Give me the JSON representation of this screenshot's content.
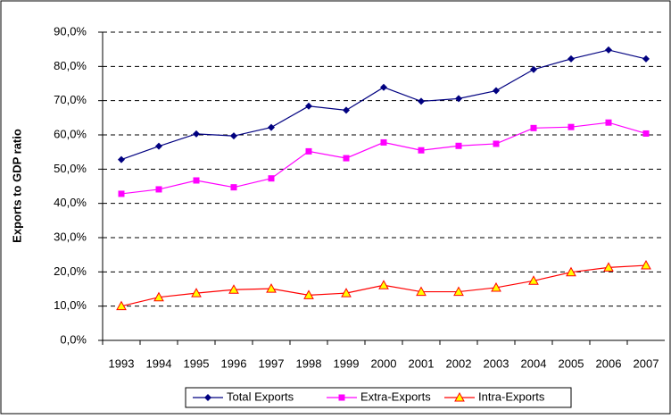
{
  "chart_data": {
    "type": "line",
    "y_label": "Exports to GDP ratio",
    "categories": [
      "1993",
      "1994",
      "1995",
      "1996",
      "1997",
      "1998",
      "1999",
      "2000",
      "2001",
      "2002",
      "2003",
      "2004",
      "2005",
      "2006",
      "2007"
    ],
    "series": [
      {
        "name": "Total Exports",
        "color": "#000080",
        "marker": "diamond",
        "values": [
          52.8,
          56.7,
          60.3,
          59.7,
          62.2,
          68.4,
          67.2,
          73.9,
          69.8,
          70.6,
          72.9,
          79.1,
          82.2,
          84.8,
          82.2
        ]
      },
      {
        "name": "Extra-Exports",
        "color": "#ff00ff",
        "marker": "square",
        "values": [
          42.8,
          44.1,
          46.7,
          44.7,
          47.3,
          55.2,
          53.2,
          57.8,
          55.5,
          56.8,
          57.4,
          62.0,
          62.3,
          63.6,
          60.4
        ]
      },
      {
        "name": "Intra-Exports",
        "color": "#ff0000",
        "marker": "triangle",
        "values": [
          10.0,
          12.6,
          13.8,
          14.8,
          15.1,
          13.2,
          13.8,
          16.1,
          14.2,
          14.2,
          15.4,
          17.4,
          19.9,
          21.3,
          21.9
        ]
      }
    ],
    "ylim": [
      0,
      90
    ],
    "yticks": [
      {
        "value": 0,
        "label": "0,0%"
      },
      {
        "value": 10,
        "label": "10,0%"
      },
      {
        "value": 20,
        "label": "20,0%"
      },
      {
        "value": 30,
        "label": "30,0%"
      },
      {
        "value": 40,
        "label": "40,0%"
      },
      {
        "value": 50,
        "label": "50,0%"
      },
      {
        "value": 60,
        "label": "60,0%"
      },
      {
        "value": 70,
        "label": "70,0%"
      },
      {
        "value": 80,
        "label": "80,0%"
      },
      {
        "value": 90,
        "label": "90,0%"
      }
    ],
    "grid": true,
    "legend": "bottom"
  }
}
